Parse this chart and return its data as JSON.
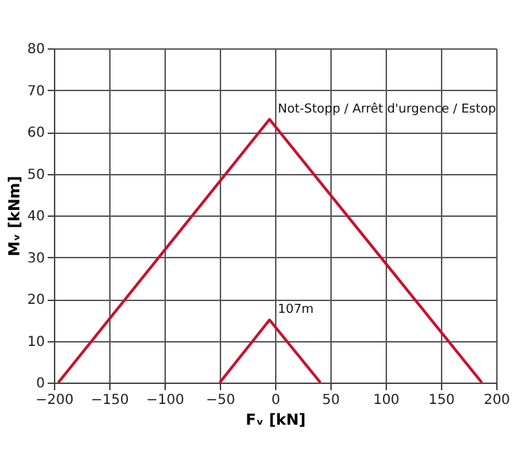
{
  "chart_data": {
    "type": "line",
    "xlabel": "Fᵥ [kN]",
    "ylabel": "Mᵥ [kNm]",
    "series": [
      {
        "color": "#c8102e",
        "x": [
          -196,
          -5,
          187
        ],
        "values": [
          0,
          63,
          0
        ]
      },
      {
        "color": "#c8102e",
        "x": [
          -50,
          -5,
          41
        ],
        "values": [
          0,
          15,
          0
        ]
      }
    ],
    "annotations": [
      {
        "text": "Not-Stopp / Arrêt d'urgence / Estop",
        "x": -5,
        "y": 63
      },
      {
        "text": "107m",
        "x": -5,
        "y": 15
      }
    ],
    "xlim": [
      -200,
      200
    ],
    "xticks": [
      -200,
      -150,
      -100,
      -50,
      0,
      50,
      100,
      150,
      200
    ],
    "ylim": [
      0,
      80
    ],
    "yticks": [
      0,
      10,
      20,
      30,
      40,
      50,
      60,
      70,
      80
    ],
    "grid": true,
    "marker": "none",
    "line_style": "solid"
  }
}
